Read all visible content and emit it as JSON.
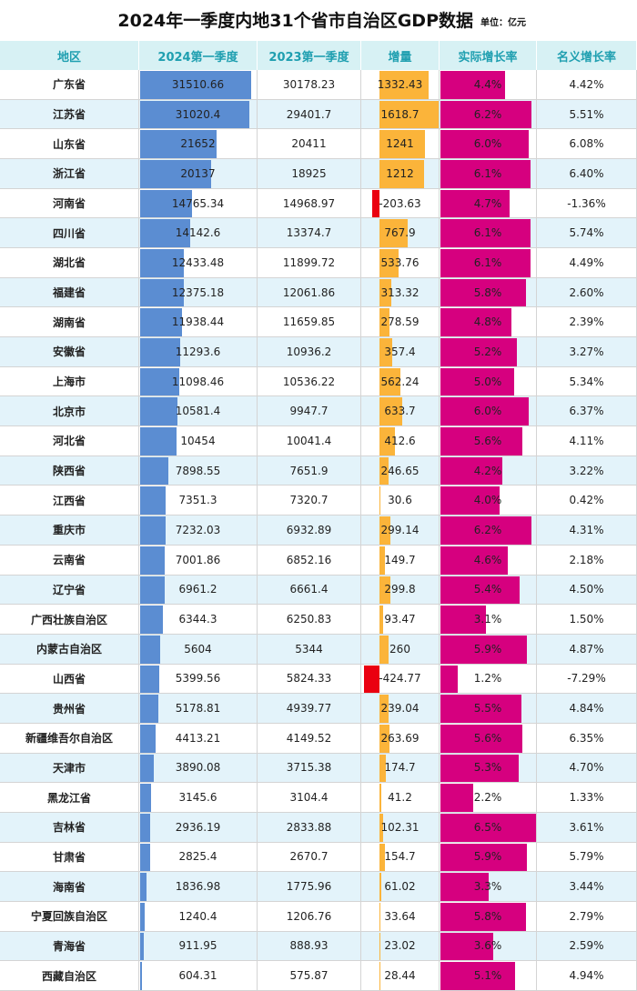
{
  "header": {
    "title": "2024年一季度内地31个省市自治区GDP数据",
    "unit": "单位：亿元"
  },
  "table": {
    "columns": [
      "地区",
      "2024第一季度",
      "2023第一季度",
      "增量",
      "实际增长率",
      "名义增长率"
    ],
    "rows": [
      [
        "广东省",
        31510.66,
        30178.23,
        1332.43,
        {
          "value": 4.4,
          "label": "4.4%"
        },
        "4.42%"
      ],
      [
        "江苏省",
        31020.4,
        29401.7,
        1618.7,
        {
          "value": 6.2,
          "label": "6.2%"
        },
        "5.51%"
      ],
      [
        "山东省",
        21652,
        20411,
        1241,
        {
          "value": 6.0,
          "label": "6.0%"
        },
        "6.08%"
      ],
      [
        "浙江省",
        20137,
        18925,
        1212,
        {
          "value": 6.1,
          "label": "6.1%"
        },
        "6.40%"
      ],
      [
        "河南省",
        14765.34,
        14968.97,
        -203.63,
        {
          "value": 4.7,
          "label": "4.7%"
        },
        "-1.36%"
      ],
      [
        "四川省",
        14142.6,
        13374.7,
        767.9,
        {
          "value": 6.1,
          "label": "6.1%"
        },
        "5.74%"
      ],
      [
        "湖北省",
        12433.48,
        11899.72,
        533.76,
        {
          "value": 6.1,
          "label": "6.1%"
        },
        "4.49%"
      ],
      [
        "福建省",
        12375.18,
        12061.86,
        313.32,
        {
          "value": 5.8,
          "label": "5.8%"
        },
        "2.60%"
      ],
      [
        "湖南省",
        11938.44,
        11659.85,
        278.59,
        {
          "value": 4.8,
          "label": "4.8%"
        },
        "2.39%"
      ],
      [
        "安徽省",
        11293.6,
        10936.2,
        357.4,
        {
          "value": 5.2,
          "label": "5.2%"
        },
        "3.27%"
      ],
      [
        "上海市",
        11098.46,
        10536.22,
        562.24,
        {
          "value": 5.0,
          "label": "5.0%"
        },
        "5.34%"
      ],
      [
        "北京市",
        10581.4,
        9947.7,
        633.7,
        {
          "value": 6.0,
          "label": "6.0%"
        },
        "6.37%"
      ],
      [
        "河北省",
        10454,
        10041.4,
        412.6,
        {
          "value": 5.6,
          "label": "5.6%"
        },
        "4.11%"
      ],
      [
        "陕西省",
        7898.55,
        7651.9,
        246.65,
        {
          "value": 4.2,
          "label": "4.2%"
        },
        "3.22%"
      ],
      [
        "江西省",
        7351.3,
        7320.7,
        30.6,
        {
          "value": 4.0,
          "label": "4.0%"
        },
        "0.42%"
      ],
      [
        "重庆市",
        7232.03,
        6932.89,
        299.14,
        {
          "value": 6.2,
          "label": "6.2%"
        },
        "4.31%"
      ],
      [
        "云南省",
        7001.86,
        6852.16,
        149.7,
        {
          "value": 4.6,
          "label": "4.6%"
        },
        "2.18%"
      ],
      [
        "辽宁省",
        6961.2,
        6661.4,
        299.8,
        {
          "value": 5.4,
          "label": "5.4%"
        },
        "4.50%"
      ],
      [
        "广西壮族自治区",
        6344.3,
        6250.83,
        93.47,
        {
          "value": 3.1,
          "label": "3.1%"
        },
        "1.50%"
      ],
      [
        "内蒙古自治区",
        5604,
        5344,
        260,
        {
          "value": 5.9,
          "label": "5.9%"
        },
        "4.87%"
      ],
      [
        "山西省",
        5399.56,
        5824.33,
        -424.77,
        {
          "value": 1.2,
          "label": "1.2%"
        },
        "-7.29%"
      ],
      [
        "贵州省",
        5178.81,
        4939.77,
        239.04,
        {
          "value": 5.5,
          "label": "5.5%"
        },
        "4.84%"
      ],
      [
        "新疆维吾尔自治区",
        4413.21,
        4149.52,
        263.69,
        {
          "value": 5.6,
          "label": "5.6%"
        },
        "6.35%"
      ],
      [
        "天津市",
        3890.08,
        3715.38,
        174.7,
        {
          "value": 5.3,
          "label": "5.3%"
        },
        "4.70%"
      ],
      [
        "黑龙江省",
        3145.6,
        3104.4,
        41.2,
        {
          "value": 2.2,
          "label": "2.2%"
        },
        "1.33%"
      ],
      [
        "吉林省",
        2936.19,
        2833.88,
        102.31,
        {
          "value": 6.5,
          "label": "6.5%"
        },
        "3.61%"
      ],
      [
        "甘肃省",
        2825.4,
        2670.7,
        154.7,
        {
          "value": 5.9,
          "label": "5.9%"
        },
        "5.79%"
      ],
      [
        "海南省",
        1836.98,
        1775.96,
        61.02,
        {
          "value": 3.3,
          "label": "3.3%"
        },
        "3.44%"
      ],
      [
        "宁夏回族自治区",
        1240.4,
        1206.76,
        33.64,
        {
          "value": 5.8,
          "label": "5.8%"
        },
        "2.79%"
      ],
      [
        "青海省",
        911.95,
        888.93,
        23.02,
        {
          "value": 3.6,
          "label": "3.6%"
        },
        "2.59%"
      ],
      [
        "西藏自治区",
        604.31,
        575.87,
        28.44,
        {
          "value": 5.1,
          "label": "5.1%"
        },
        "4.94%"
      ]
    ]
  }
}
